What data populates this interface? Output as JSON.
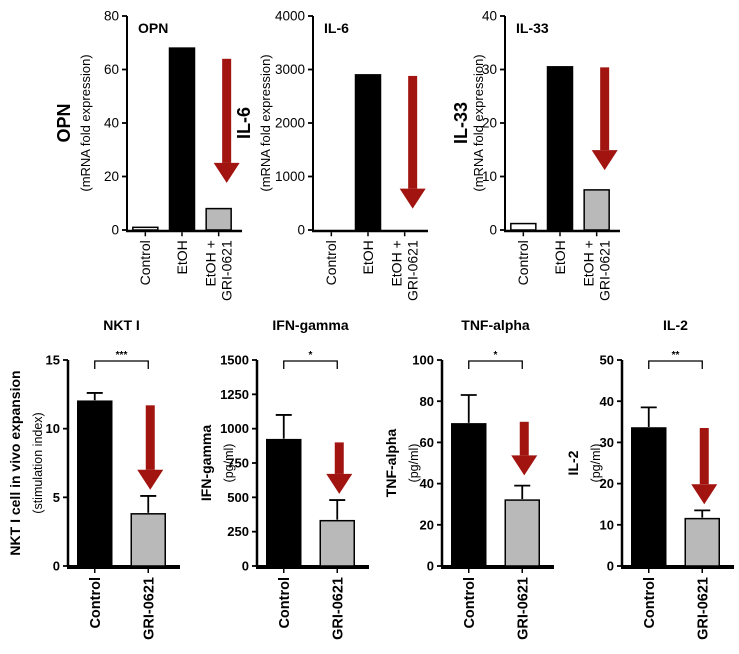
{
  "figure": {
    "background": "#ffffff",
    "colors": {
      "arrow": "#A11410",
      "bar_black": "#000000",
      "bar_gray": "#b9b9b9",
      "bar_white": "#ffffff",
      "axis": "#000000"
    }
  },
  "chart_data": [
    {
      "type": "bar",
      "id": "opn",
      "row": "top",
      "inner_title": "OPN",
      "ylabel_main": "OPN",
      "ylabel_sub": "(mRNA fold expression)",
      "ylim": [
        0,
        80
      ],
      "yticks": [
        0,
        20,
        40,
        60,
        80
      ],
      "categories": [
        "Control",
        "EtOH",
        "EtOH +\nGRI-0621"
      ],
      "values": [
        1,
        68,
        8
      ],
      "errors": [
        0,
        0,
        0
      ],
      "bar_styles": [
        "white",
        "black",
        "gray"
      ],
      "significance": null,
      "arrow": {
        "bar_index": 2,
        "top_frac": 0.8,
        "bottom_frac": 0.22
      }
    },
    {
      "type": "bar",
      "id": "il6",
      "row": "top",
      "inner_title": "IL-6",
      "ylabel_main": "IL-6",
      "ylabel_sub": "(mRNA fold expression)",
      "ylim": [
        0,
        4000
      ],
      "yticks": [
        0,
        1000,
        2000,
        3000,
        4000
      ],
      "categories": [
        "Control",
        "EtOH",
        "EtOH +\nGRI-0621"
      ],
      "values": [
        0,
        2900,
        0
      ],
      "errors": [
        0,
        0,
        0
      ],
      "bar_styles": [
        "white",
        "black",
        "gray"
      ],
      "significance": null,
      "arrow": {
        "bar_index": 2,
        "top_frac": 0.72,
        "bottom_frac": 0.1
      }
    },
    {
      "type": "bar",
      "id": "il33",
      "row": "top",
      "inner_title": "IL-33",
      "ylabel_main": "IL-33",
      "ylabel_sub": "(mRNA fold expression)",
      "ylim": [
        0,
        40
      ],
      "yticks": [
        0,
        10,
        20,
        30,
        40
      ],
      "categories": [
        "Control",
        "EtOH",
        "EtOH +\nGRI-0621"
      ],
      "values": [
        1.2,
        30.5,
        7.5
      ],
      "errors": [
        0,
        0,
        0
      ],
      "bar_styles": [
        "white",
        "black",
        "gray"
      ],
      "significance": null,
      "arrow": {
        "bar_index": 2,
        "top_frac": 0.76,
        "bottom_frac": 0.28
      }
    },
    {
      "type": "bar",
      "id": "nkt",
      "row": "bottom",
      "title": "NKT I",
      "ylabel_main": "NKT I cell in vivo expansion",
      "ylabel_sub": "(stimulation index)",
      "ylim": [
        0,
        15
      ],
      "yticks": [
        0,
        5,
        10,
        15
      ],
      "categories": [
        "Control",
        "GRI-0621"
      ],
      "values": [
        12,
        3.8
      ],
      "errors": [
        0.6,
        1.3
      ],
      "bar_styles": [
        "black",
        "gray"
      ],
      "significance": "***",
      "arrow": {
        "bar_index": 1,
        "top_frac": 0.78,
        "bottom_frac": 0.37
      }
    },
    {
      "type": "bar",
      "id": "ifng",
      "row": "bottom",
      "title": "IFN-gamma",
      "ylabel_main": "IFN-gamma",
      "ylabel_sub": "(pg/ml)",
      "ylim": [
        0,
        1500
      ],
      "yticks": [
        0,
        250,
        500,
        750,
        1000,
        1250,
        1500
      ],
      "categories": [
        "Control",
        "GRI-0621"
      ],
      "values": [
        920,
        330
      ],
      "errors": [
        180,
        150
      ],
      "bar_styles": [
        "black",
        "gray"
      ],
      "significance": "*",
      "arrow": {
        "bar_index": 1,
        "top_frac": 0.6,
        "bottom_frac": 0.35
      }
    },
    {
      "type": "bar",
      "id": "tnfa",
      "row": "bottom",
      "title": "TNF-alpha",
      "ylabel_main": "TNF-alpha",
      "ylabel_sub": "(pg/ml)",
      "ylim": [
        0,
        100
      ],
      "yticks": [
        0,
        20,
        40,
        60,
        80,
        100
      ],
      "categories": [
        "Control",
        "GRI-0621"
      ],
      "values": [
        69,
        32
      ],
      "errors": [
        14,
        7
      ],
      "bar_styles": [
        "black",
        "gray"
      ],
      "significance": "*",
      "arrow": {
        "bar_index": 1,
        "top_frac": 0.7,
        "bottom_frac": 0.44
      }
    },
    {
      "type": "bar",
      "id": "il2",
      "row": "bottom",
      "title": "IL-2",
      "ylabel_main": "IL-2",
      "ylabel_sub": "(pg/ml)",
      "ylim": [
        0,
        50
      ],
      "yticks": [
        0,
        10,
        20,
        30,
        40,
        50
      ],
      "categories": [
        "Control",
        "GRI-0621"
      ],
      "values": [
        33.5,
        11.5
      ],
      "errors": [
        5,
        2
      ],
      "bar_styles": [
        "black",
        "gray"
      ],
      "significance": "**",
      "arrow": {
        "bar_index": 1,
        "top_frac": 0.67,
        "bottom_frac": 0.3
      }
    }
  ]
}
